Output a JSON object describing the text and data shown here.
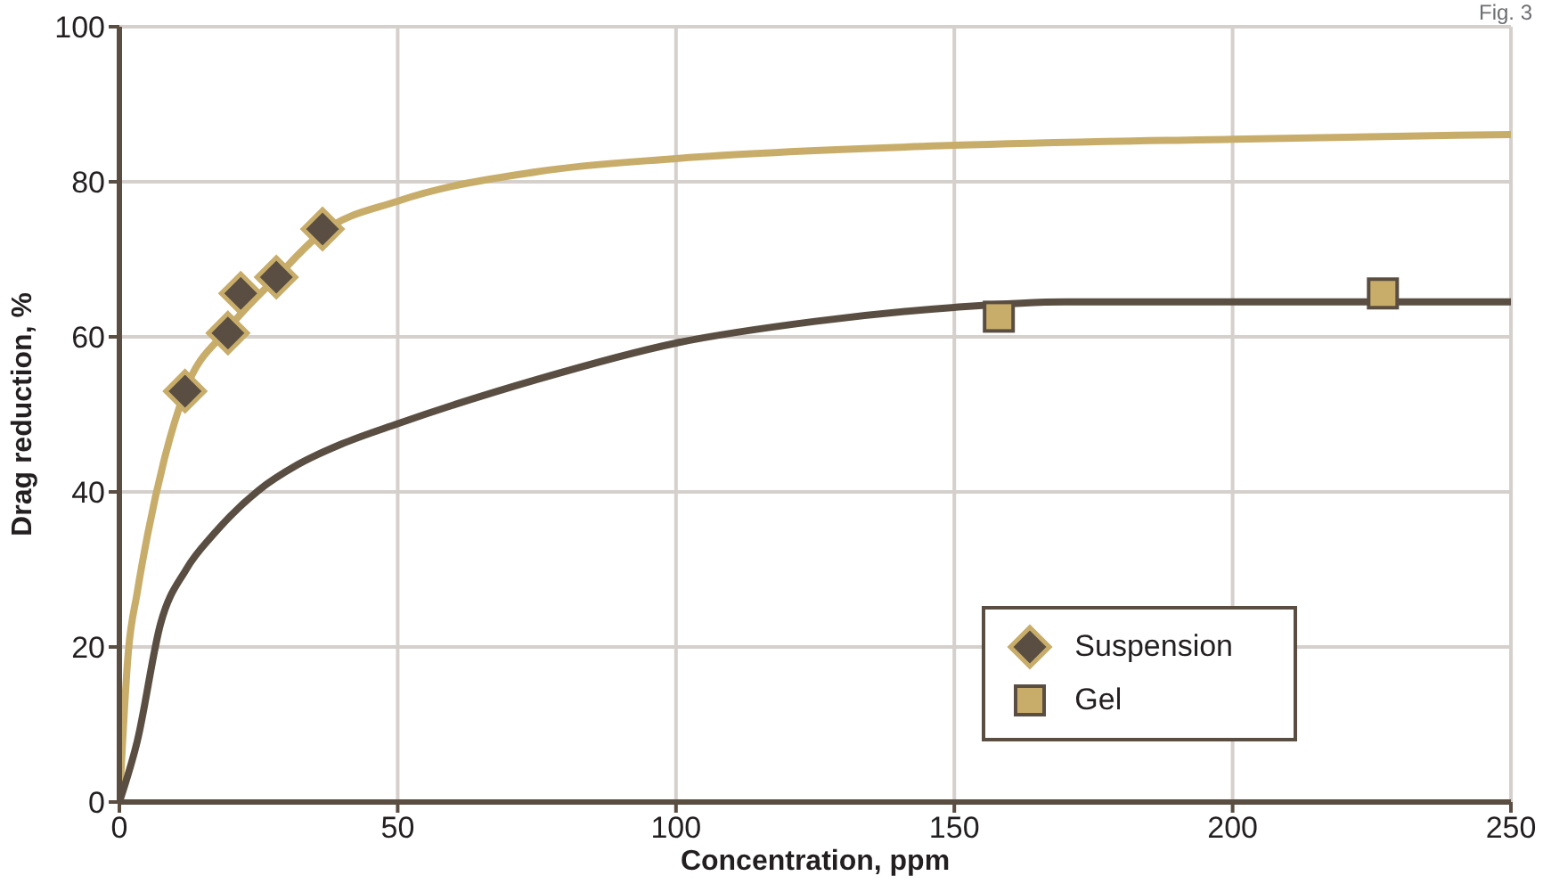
{
  "chart_data": {
    "type": "scatter",
    "xlabel": "Concentration, ppm",
    "ylabel": "Drag reduction, %",
    "annotations": [
      "Fig. 3"
    ],
    "xlim": [
      0,
      250
    ],
    "xticks": [
      0,
      50,
      100,
      150,
      200,
      250
    ],
    "ylim": [
      0,
      100
    ],
    "yticks": [
      0,
      20,
      40,
      60,
      80,
      100
    ],
    "grid": true,
    "legend": "bottom right",
    "series": [
      {
        "type": "line",
        "color": "#c8ad6a",
        "marker": "none",
        "x": [
          0,
          1.6,
          3.2,
          5.1,
          8,
          11.8,
          19.5,
          28,
          36.5,
          50,
          75,
          100,
          150,
          200,
          250
        ],
        "values": [
          0,
          19.3,
          27,
          34.6,
          44,
          53,
          61,
          67.5,
          73.5,
          77.5,
          81.3,
          83,
          84.7,
          85.5,
          86.1
        ]
      },
      {
        "type": "line",
        "color": "#5a4e42",
        "marker": "none",
        "x": [
          0,
          3.2,
          7.4,
          12,
          17,
          25,
          32,
          40,
          50,
          75,
          100,
          125,
          150,
          170,
          200,
          250
        ],
        "values": [
          0,
          7.8,
          23,
          30,
          34.6,
          40.2,
          43.5,
          46.2,
          48.8,
          54.5,
          59.2,
          62,
          63.8,
          64.5,
          64.5,
          64.5
        ]
      },
      {
        "name": "Suspension",
        "color": "#5a4e42",
        "marker": "diamond",
        "x": [
          11.8,
          19.5,
          21.8,
          28.2,
          36.5
        ],
        "values": [
          53,
          60.5,
          65.6,
          67.7,
          73.9
        ]
      },
      {
        "name": "Gel",
        "color": "#c8ad6a",
        "marker": "square",
        "x": [
          158,
          227
        ],
        "values": [
          62.6,
          65.6
        ]
      }
    ]
  }
}
